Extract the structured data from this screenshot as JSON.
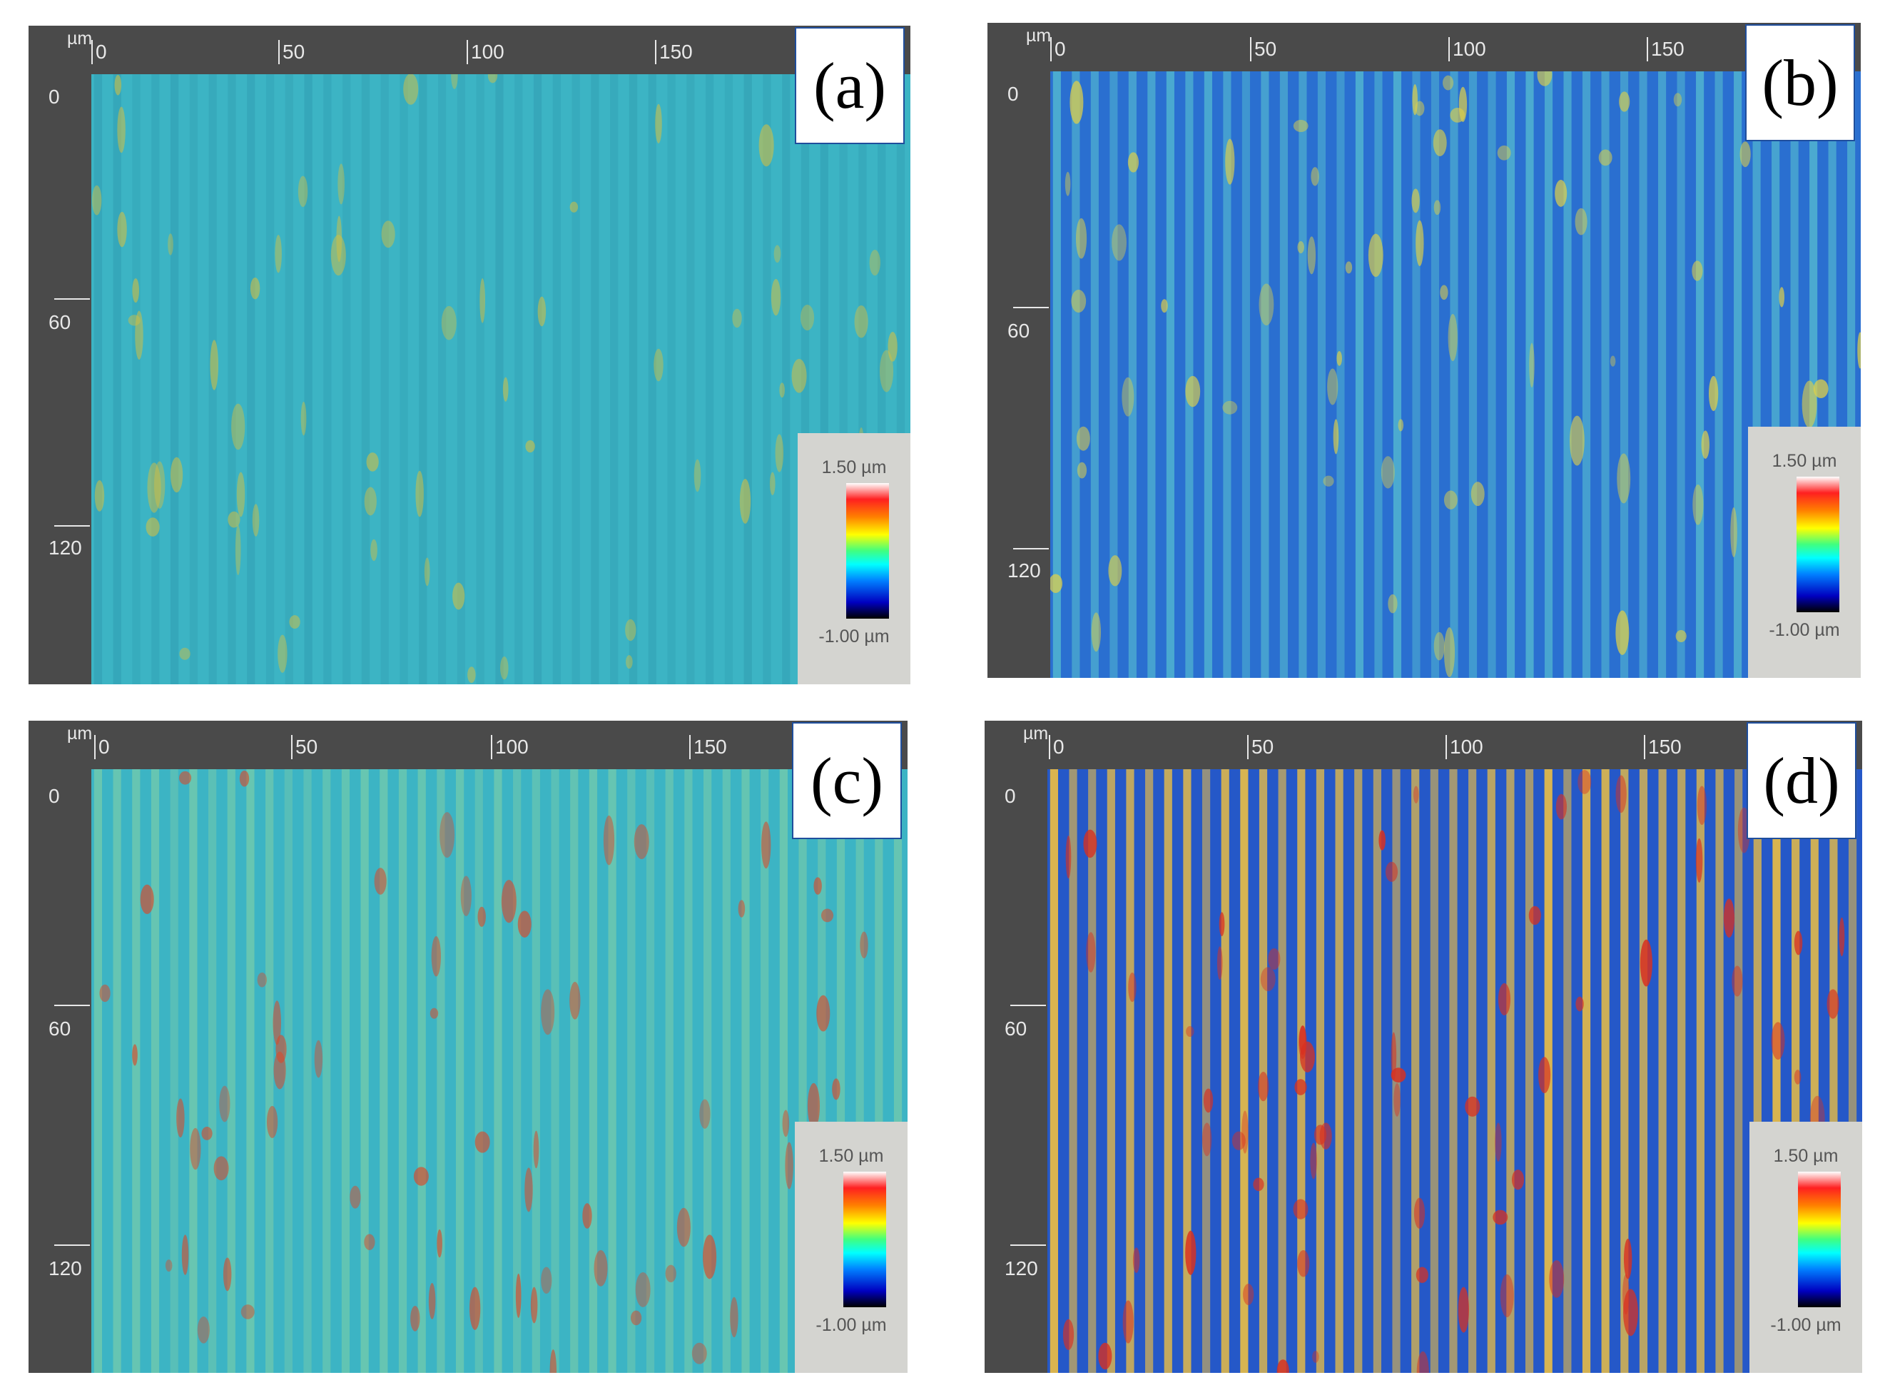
{
  "figure": {
    "axis_unit": "µm",
    "x_ticks": [
      "0",
      "50",
      "100",
      "150"
    ],
    "y_ticks": [
      "0",
      "60",
      "120"
    ],
    "legend": {
      "max": "1.50 µm",
      "min": "-1.00 µm"
    },
    "panels": [
      {
        "label": "(a)",
        "base_color": "#3cb4c4",
        "stripe_color": "#2a90a6",
        "hot_color": "#d6c040",
        "stripe_intensity": 0.35
      },
      {
        "label": "(b)",
        "base_color": "#2a6fd0",
        "stripe_color": "#5cc8d0",
        "hot_color": "#e0d048",
        "stripe_intensity": 0.7
      },
      {
        "label": "(c)",
        "base_color": "#3cb4c4",
        "stripe_color": "#8fd6a0",
        "hot_color": "#d84a2a",
        "stripe_intensity": 0.55
      },
      {
        "label": "(d)",
        "base_color": "#2558c8",
        "stripe_color": "#f0c040",
        "hot_color": "#d83020",
        "stripe_intensity": 0.9
      }
    ]
  }
}
